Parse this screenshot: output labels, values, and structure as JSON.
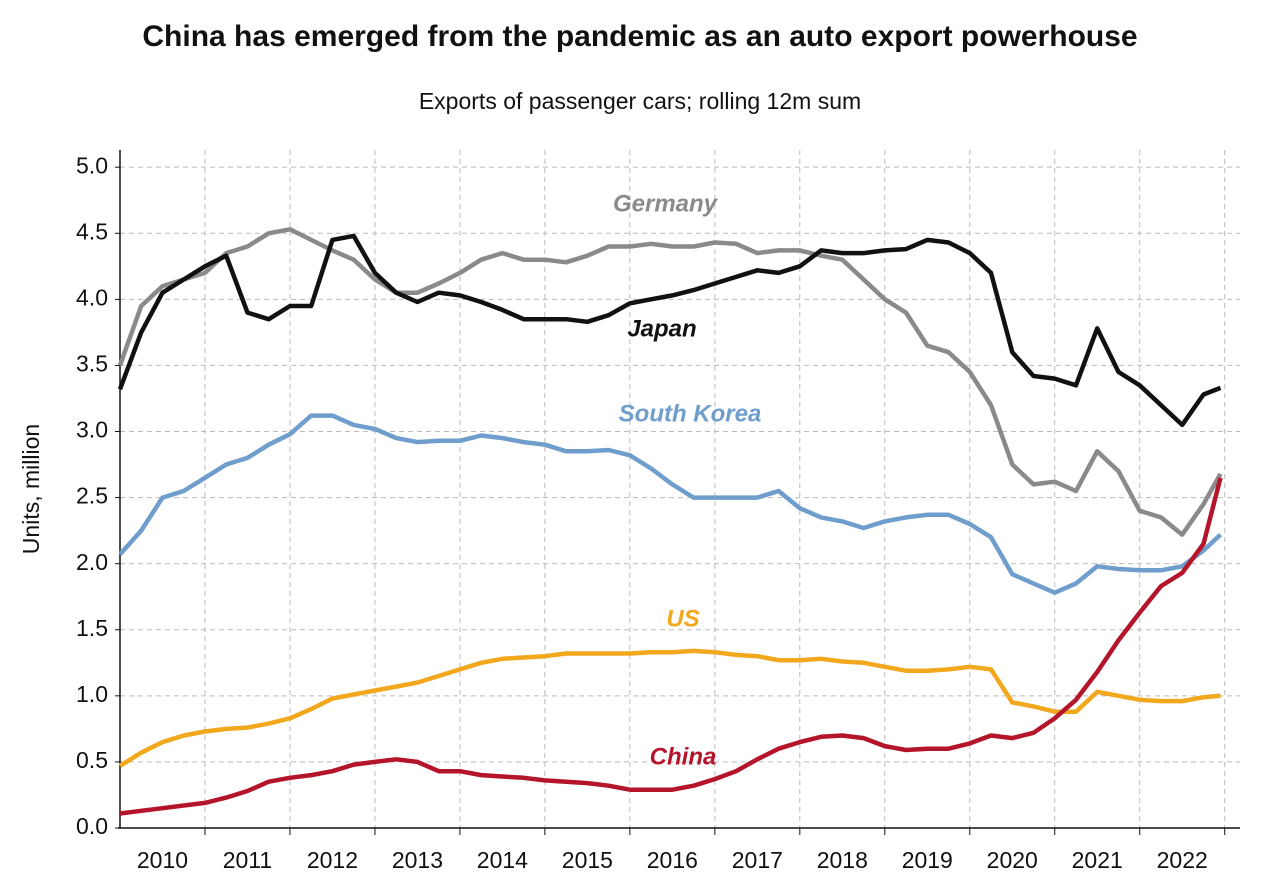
{
  "chart_data": {
    "type": "line",
    "title": "China has emerged from the pandemic as an auto export powerhouse",
    "subtitle": "Exports of passenger cars; rolling 12m sum",
    "y_label": "Units, million",
    "x": [
      2010,
      2010.25,
      2010.5,
      2010.75,
      2011,
      2011.25,
      2011.5,
      2011.75,
      2012,
      2012.25,
      2012.5,
      2012.75,
      2013,
      2013.25,
      2013.5,
      2013.75,
      2014,
      2014.25,
      2014.5,
      2014.75,
      2015,
      2015.25,
      2015.5,
      2015.75,
      2016,
      2016.25,
      2016.5,
      2016.75,
      2017,
      2017.25,
      2017.5,
      2017.75,
      2018,
      2018.25,
      2018.5,
      2018.75,
      2019,
      2019.25,
      2019.5,
      2019.75,
      2020,
      2020.25,
      2020.5,
      2020.75,
      2021,
      2021.25,
      2021.5,
      2021.75,
      2022,
      2022.25,
      2022.5,
      2022.75,
      2022.95
    ],
    "series": [
      {
        "name": "Germany",
        "color": "#8a8a8a",
        "values": [
          3.5,
          3.95,
          4.1,
          4.15,
          4.2,
          4.35,
          4.4,
          4.5,
          4.53,
          4.45,
          4.37,
          4.3,
          4.15,
          4.05,
          4.05,
          4.12,
          4.2,
          4.3,
          4.35,
          4.3,
          4.3,
          4.28,
          4.33,
          4.4,
          4.4,
          4.42,
          4.4,
          4.4,
          4.43,
          4.42,
          4.35,
          4.37,
          4.37,
          4.33,
          4.3,
          4.15,
          4.0,
          3.9,
          3.65,
          3.6,
          3.45,
          3.2,
          2.75,
          2.6,
          2.62,
          2.55,
          2.85,
          2.7,
          2.4,
          2.35,
          2.22,
          2.45,
          2.68
        ]
      },
      {
        "name": "Japan",
        "color": "#111111",
        "values": [
          3.32,
          3.75,
          4.05,
          4.15,
          4.25,
          4.33,
          3.9,
          3.85,
          3.95,
          3.95,
          4.45,
          4.48,
          4.2,
          4.05,
          3.98,
          4.05,
          4.03,
          3.98,
          3.92,
          3.85,
          3.85,
          3.85,
          3.83,
          3.88,
          3.97,
          4.0,
          4.03,
          4.07,
          4.12,
          4.17,
          4.22,
          4.2,
          4.25,
          4.37,
          4.35,
          4.35,
          4.37,
          4.38,
          4.45,
          4.43,
          4.35,
          4.2,
          3.6,
          3.42,
          3.4,
          3.35,
          3.78,
          3.45,
          3.35,
          3.2,
          3.05,
          3.28,
          3.33
        ]
      },
      {
        "name": "South Korea",
        "color": "#6f9dcc",
        "values": [
          2.07,
          2.25,
          2.5,
          2.55,
          2.65,
          2.75,
          2.8,
          2.9,
          2.98,
          3.12,
          3.12,
          3.05,
          3.02,
          2.95,
          2.92,
          2.93,
          2.93,
          2.97,
          2.95,
          2.92,
          2.9,
          2.85,
          2.85,
          2.86,
          2.82,
          2.72,
          2.6,
          2.5,
          2.5,
          2.5,
          2.5,
          2.55,
          2.42,
          2.35,
          2.32,
          2.27,
          2.32,
          2.35,
          2.37,
          2.37,
          2.3,
          2.2,
          1.92,
          1.85,
          1.78,
          1.85,
          1.98,
          1.96,
          1.95,
          1.95,
          1.98,
          2.1,
          2.22
        ]
      },
      {
        "name": "US",
        "color": "#f2a81d",
        "values": [
          0.47,
          0.57,
          0.65,
          0.7,
          0.73,
          0.75,
          0.76,
          0.79,
          0.83,
          0.9,
          0.98,
          1.01,
          1.04,
          1.07,
          1.1,
          1.15,
          1.2,
          1.25,
          1.28,
          1.29,
          1.3,
          1.32,
          1.32,
          1.32,
          1.32,
          1.33,
          1.33,
          1.34,
          1.33,
          1.31,
          1.3,
          1.27,
          1.27,
          1.28,
          1.26,
          1.25,
          1.22,
          1.19,
          1.19,
          1.2,
          1.22,
          1.2,
          0.95,
          0.92,
          0.88,
          0.88,
          1.03,
          1.0,
          0.97,
          0.96,
          0.96,
          0.99,
          1.0
        ]
      },
      {
        "name": "China",
        "color": "#b5152b",
        "values": [
          0.11,
          0.13,
          0.15,
          0.17,
          0.19,
          0.23,
          0.28,
          0.35,
          0.38,
          0.4,
          0.43,
          0.48,
          0.5,
          0.52,
          0.5,
          0.43,
          0.43,
          0.4,
          0.39,
          0.38,
          0.36,
          0.35,
          0.34,
          0.32,
          0.29,
          0.29,
          0.29,
          0.32,
          0.37,
          0.43,
          0.52,
          0.6,
          0.65,
          0.69,
          0.7,
          0.68,
          0.62,
          0.59,
          0.6,
          0.6,
          0.64,
          0.7,
          0.68,
          0.72,
          0.83,
          0.97,
          1.18,
          1.42,
          1.63,
          1.83,
          1.93,
          2.15,
          2.65
        ]
      }
    ],
    "xlim": [
      2010,
      2023.18
    ],
    "xticks": [
      {
        "value": 2010.5,
        "label": "2010"
      },
      {
        "value": 2011.5,
        "label": "2011"
      },
      {
        "value": 2012.5,
        "label": "2012"
      },
      {
        "value": 2013.5,
        "label": "2013"
      },
      {
        "value": 2014.5,
        "label": "2014"
      },
      {
        "value": 2015.5,
        "label": "2015"
      },
      {
        "value": 2016.5,
        "label": "2016"
      },
      {
        "value": 2017.5,
        "label": "2017"
      },
      {
        "value": 2018.5,
        "label": "2018"
      },
      {
        "value": 2019.5,
        "label": "2019"
      },
      {
        "value": 2020.5,
        "label": "2020"
      },
      {
        "value": 2021.5,
        "label": "2021"
      },
      {
        "value": 2022.5,
        "label": "2022"
      }
    ],
    "xgrid": [
      2011,
      2012,
      2013,
      2014,
      2015,
      2016,
      2017,
      2018,
      2019,
      2020,
      2021,
      2022,
      2023
    ],
    "ylim": [
      0,
      5.13
    ],
    "yticks": [
      {
        "value": 0,
        "label": "0.0"
      },
      {
        "value": 0.5,
        "label": "0.5"
      },
      {
        "value": 1,
        "label": "1.0"
      },
      {
        "value": 1.5,
        "label": "1.5"
      },
      {
        "value": 2,
        "label": "2.0"
      },
      {
        "value": 2.5,
        "label": "2.5"
      },
      {
        "value": 3,
        "label": "3.0"
      },
      {
        "value": 3.5,
        "label": "3.5"
      },
      {
        "value": 4,
        "label": "4.0"
      },
      {
        "value": 4.5,
        "label": "4.5"
      },
      {
        "value": 5,
        "label": "5.0"
      }
    ],
    "grid": true
  }
}
